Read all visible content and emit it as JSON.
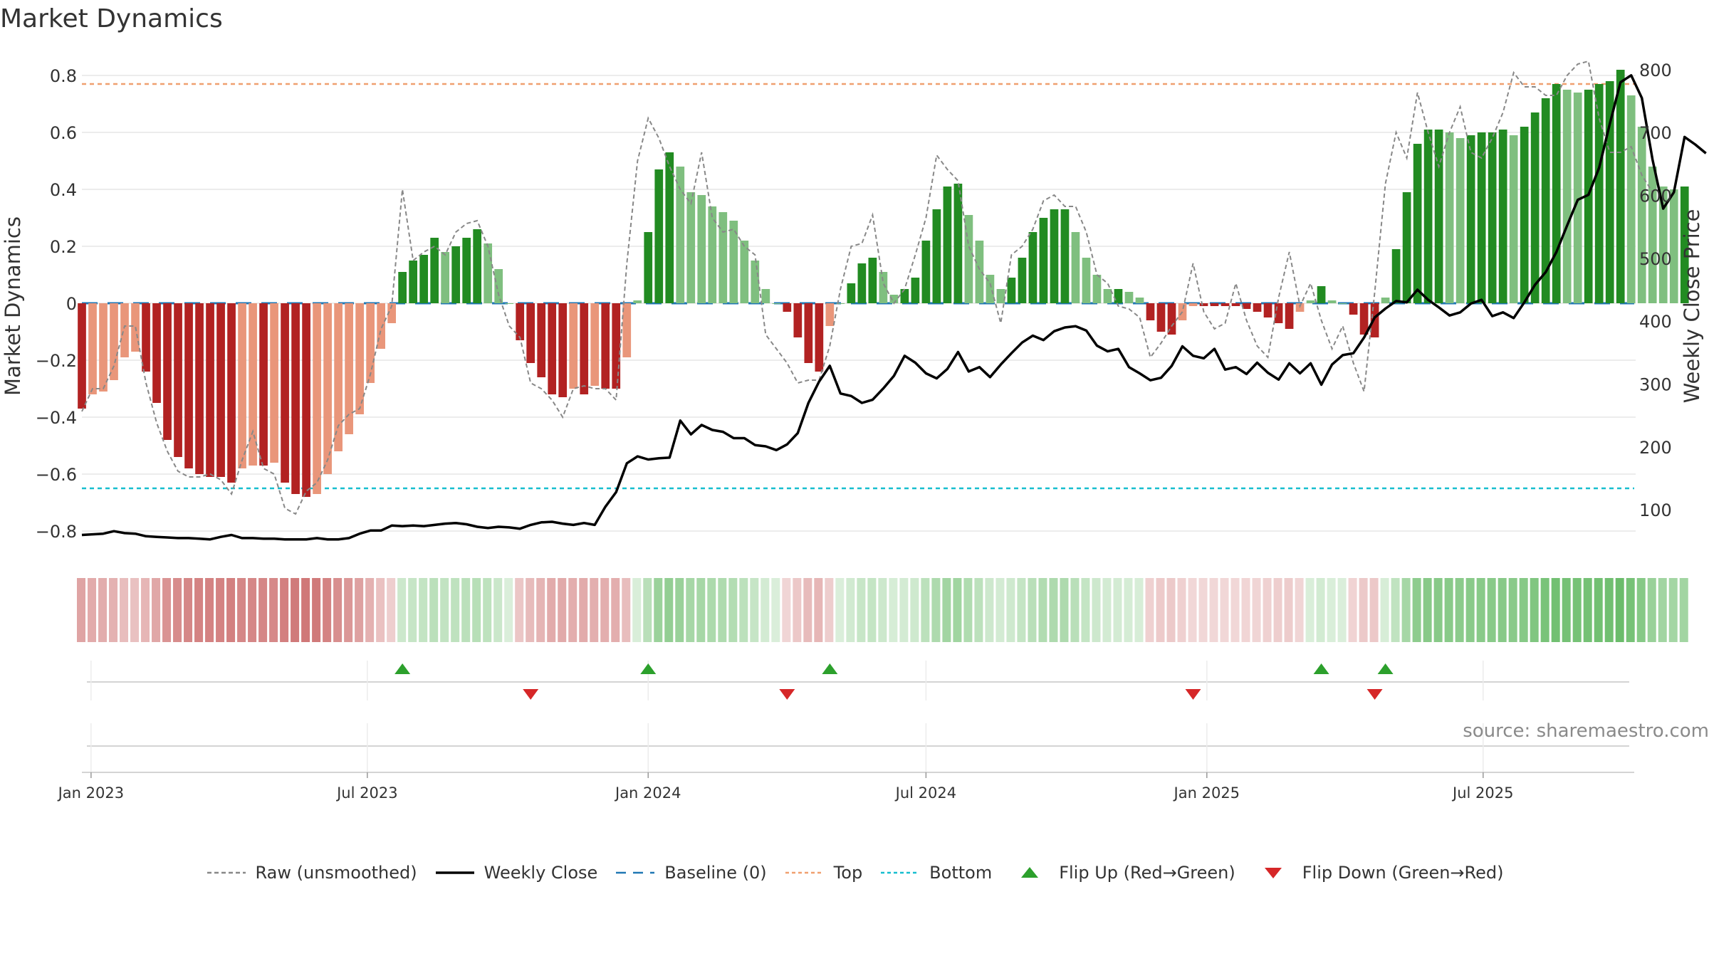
{
  "title": "Market Dynamics",
  "source": "source: sharemaestro.com",
  "legend": [
    {
      "key": "raw",
      "label": "Raw (unsmoothed)",
      "icon": "dashed-grey-line",
      "color": "#888888"
    },
    {
      "key": "close",
      "label": "Weekly Close",
      "icon": "solid-black-line",
      "color": "#000000"
    },
    {
      "key": "baseline",
      "label": "Baseline (0)",
      "icon": "dashed-blue-line",
      "color": "#1f77b4"
    },
    {
      "key": "top",
      "label": "Top",
      "icon": "dotted-orange-line",
      "color": "#f0a070"
    },
    {
      "key": "bottom",
      "label": "Bottom",
      "icon": "dotted-cyan-line",
      "color": "#17becf"
    },
    {
      "key": "flipup",
      "label": "Flip Up (Red→Green)",
      "icon": "triangle-up-icon",
      "color": "#2ca02c"
    },
    {
      "key": "flipdown",
      "label": "Flip Down (Green→Red)",
      "icon": "triangle-down-icon",
      "color": "#d62728"
    }
  ],
  "colors": {
    "red_dark": "#b22222",
    "red_light": "#e9967a",
    "green_dark": "#228b22",
    "green_light": "#7fbf7f",
    "top_line": "#f0a070",
    "bottom_line": "#17becf",
    "baseline": "#1f77b4",
    "raw": "#888888",
    "close": "#000000"
  },
  "chart_data": {
    "type": "bar",
    "title": "Market Dynamics",
    "ylabel": "Market Dynamics",
    "y2label": "Weekly Close Price",
    "ylim": [
      -0.88,
      0.86
    ],
    "y2lim": [
      30,
      818
    ],
    "yticks": [
      -0.8,
      -0.6,
      -0.4,
      -0.2,
      0,
      0.2,
      0.4,
      0.6,
      0.8
    ],
    "yticklabels": [
      "−0.8",
      "−0.6",
      "−0.4",
      "−0.2",
      "0",
      "0.2",
      "0.4",
      "0.6",
      "0.8"
    ],
    "y2ticks": [
      100,
      200,
      300,
      400,
      500,
      600,
      700,
      800
    ],
    "xstart": "2022-12-26",
    "xend": "2025-10-08",
    "xticks": [
      "2023-01-01",
      "2023-07-01",
      "2024-01-01",
      "2024-07-01",
      "2025-01-01",
      "2025-07-01"
    ],
    "xticklabels": [
      "Jan 2023",
      "Jul 2023",
      "Jan 2024",
      "Jul 2024",
      "Jan 2025",
      "Jul 2025"
    ],
    "grid": true,
    "top_threshold": 0.77,
    "bottom_threshold": -0.65,
    "baseline": 0,
    "first_week": "2022-12-26",
    "week_days": 7,
    "dynamics": [
      -0.37,
      -0.32,
      -0.31,
      -0.27,
      -0.19,
      -0.17,
      -0.24,
      -0.35,
      -0.48,
      -0.54,
      -0.58,
      -0.6,
      -0.61,
      -0.61,
      -0.63,
      -0.58,
      -0.57,
      -0.57,
      -0.56,
      -0.63,
      -0.67,
      -0.68,
      -0.67,
      -0.6,
      -0.52,
      -0.46,
      -0.39,
      -0.28,
      -0.16,
      -0.07,
      0.11,
      0.15,
      0.17,
      0.23,
      0.18,
      0.2,
      0.23,
      0.26,
      0.21,
      0.12,
      0.0,
      -0.13,
      -0.21,
      -0.26,
      -0.32,
      -0.33,
      -0.3,
      -0.32,
      -0.29,
      -0.3,
      -0.3,
      -0.19,
      0.01,
      0.25,
      0.47,
      0.53,
      0.48,
      0.39,
      0.38,
      0.34,
      0.32,
      0.29,
      0.22,
      0.15,
      0.05,
      0.0,
      -0.03,
      -0.12,
      -0.21,
      -0.24,
      -0.08,
      0.0,
      0.07,
      0.14,
      0.16,
      0.11,
      0.03,
      0.05,
      0.09,
      0.22,
      0.33,
      0.41,
      0.42,
      0.31,
      0.22,
      0.1,
      0.05,
      0.09,
      0.16,
      0.25,
      0.3,
      0.33,
      0.33,
      0.25,
      0.16,
      0.1,
      0.05,
      0.05,
      0.04,
      0.02,
      -0.06,
      -0.1,
      -0.11,
      -0.06,
      -0.01,
      -0.01,
      -0.01,
      -0.01,
      -0.01,
      -0.02,
      -0.03,
      -0.05,
      -0.07,
      -0.09,
      -0.03,
      0.01,
      0.06,
      0.01,
      0.0,
      -0.04,
      -0.11,
      -0.12,
      0.02,
      0.19,
      0.39,
      0.56,
      0.61,
      0.61,
      0.6,
      0.58,
      0.59,
      0.6,
      0.6,
      0.61,
      0.59,
      0.62,
      0.67,
      0.72,
      0.77,
      0.75,
      0.74,
      0.75,
      0.77,
      0.78,
      0.82,
      0.73,
      0.62,
      0.48,
      0.41,
      0.4,
      0.41
    ],
    "raw": [
      -0.38,
      -0.3,
      -0.3,
      -0.22,
      -0.08,
      -0.08,
      -0.28,
      -0.42,
      -0.52,
      -0.59,
      -0.61,
      -0.61,
      -0.6,
      -0.62,
      -0.67,
      -0.55,
      -0.45,
      -0.58,
      -0.6,
      -0.72,
      -0.74,
      -0.66,
      -0.63,
      -0.55,
      -0.43,
      -0.39,
      -0.37,
      -0.25,
      -0.09,
      -0.01,
      0.4,
      0.15,
      0.18,
      0.2,
      0.17,
      0.25,
      0.28,
      0.29,
      0.2,
      0.03,
      -0.08,
      -0.12,
      -0.28,
      -0.3,
      -0.34,
      -0.4,
      -0.3,
      -0.29,
      -0.3,
      -0.3,
      -0.34,
      0.14,
      0.5,
      0.65,
      0.58,
      0.48,
      0.4,
      0.35,
      0.53,
      0.3,
      0.25,
      0.26,
      0.2,
      0.17,
      -0.11,
      -0.16,
      -0.21,
      -0.28,
      -0.27,
      -0.27,
      -0.15,
      0.05,
      0.2,
      0.21,
      0.31,
      0.07,
      0.0,
      0.05,
      0.17,
      0.3,
      0.52,
      0.47,
      0.43,
      0.2,
      0.12,
      0.07,
      -0.07,
      0.17,
      0.2,
      0.26,
      0.36,
      0.38,
      0.34,
      0.34,
      0.25,
      0.1,
      0.07,
      -0.01,
      -0.02,
      -0.05,
      -0.19,
      -0.14,
      -0.08,
      -0.03,
      0.14,
      -0.03,
      -0.09,
      -0.07,
      0.07,
      -0.06,
      -0.15,
      -0.19,
      0.02,
      0.18,
      -0.01,
      0.07,
      -0.06,
      -0.16,
      -0.08,
      -0.21,
      -0.31,
      0.04,
      0.42,
      0.6,
      0.51,
      0.74,
      0.6,
      0.48,
      0.6,
      0.69,
      0.53,
      0.51,
      0.58,
      0.67,
      0.81,
      0.76,
      0.76,
      0.73,
      0.73,
      0.8,
      0.84,
      0.85,
      0.65,
      0.53,
      0.53,
      0.55,
      0.45,
      0.39
    ],
    "close": [
      60,
      61,
      62,
      66,
      63,
      62,
      58,
      57,
      56,
      55,
      55,
      54,
      53,
      57,
      60,
      55,
      55,
      54,
      54,
      53,
      53,
      53,
      55,
      53,
      53,
      55,
      62,
      67,
      67,
      75,
      74,
      75,
      74,
      76,
      78,
      79,
      77,
      73,
      71,
      73,
      72,
      70,
      76,
      80,
      81,
      78,
      76,
      79,
      76,
      105,
      128,
      174,
      185,
      180,
      182,
      183,
      242,
      220,
      235,
      227,
      224,
      214,
      214,
      203,
      201,
      195,
      204,
      222,
      270,
      304,
      329,
      285,
      281,
      270,
      275,
      293,
      313,
      345,
      334,
      317,
      309,
      324,
      351,
      320,
      327,
      311,
      331,
      349,
      366,
      377,
      370,
      384,
      390,
      392,
      385,
      361,
      352,
      356,
      327,
      317,
      306,
      310,
      329,
      360,
      345,
      341,
      356,
      323,
      327,
      316,
      334,
      318,
      307,
      333,
      317,
      333,
      299,
      331,
      346,
      349,
      374,
      406,
      420,
      432,
      430,
      450,
      434,
      422,
      409,
      414,
      428,
      434,
      408,
      414,
      405,
      430,
      458,
      478,
      510,
      552,
      593,
      601,
      644,
      714,
      780,
      791,
      755,
      657,
      579,
      605,
      693,
      681,
      667
    ]
  },
  "panels": {
    "heat_strip_values": [
      -0.37,
      -0.32,
      -0.31,
      -0.27,
      -0.19,
      -0.17,
      -0.24,
      -0.35,
      -0.48,
      -0.54,
      -0.58,
      -0.6,
      -0.61,
      -0.61,
      -0.63,
      -0.58,
      -0.57,
      -0.57,
      -0.56,
      -0.63,
      -0.67,
      -0.68,
      -0.67,
      -0.6,
      -0.52,
      -0.46,
      -0.39,
      -0.28,
      -0.16,
      -0.07,
      0.11,
      0.15,
      0.17,
      0.23,
      0.18,
      0.2,
      0.23,
      0.26,
      0.21,
      0.12,
      0.0,
      -0.13,
      -0.21,
      -0.26,
      -0.32,
      -0.33,
      -0.3,
      -0.32,
      -0.29,
      -0.3,
      -0.3,
      -0.19,
      0.01,
      0.25,
      0.47,
      0.53,
      0.48,
      0.39,
      0.38,
      0.34,
      0.32,
      0.29,
      0.22,
      0.15,
      0.05,
      0.0,
      -0.03,
      -0.12,
      -0.21,
      -0.24,
      -0.08,
      0.0,
      0.07,
      0.14,
      0.16,
      0.11,
      0.03,
      0.05,
      0.09,
      0.22,
      0.33,
      0.41,
      0.42,
      0.31,
      0.22,
      0.1,
      0.05,
      0.09,
      0.16,
      0.25,
      0.3,
      0.33,
      0.33,
      0.25,
      0.16,
      0.1,
      0.05,
      0.05,
      0.04,
      0.02,
      -0.06,
      -0.1,
      -0.11,
      -0.06,
      -0.01,
      -0.01,
      -0.01,
      -0.01,
      -0.01,
      -0.02,
      -0.03,
      -0.05,
      -0.07,
      -0.09,
      -0.03,
      0.01,
      0.06,
      0.01,
      0.0,
      -0.04,
      -0.11,
      -0.12,
      0.02,
      0.19,
      0.39,
      0.56,
      0.61,
      0.61,
      0.6,
      0.58,
      0.59,
      0.6,
      0.6,
      0.61,
      0.59,
      0.62,
      0.67,
      0.72,
      0.77,
      0.75,
      0.74,
      0.75,
      0.77,
      0.78,
      0.82,
      0.73,
      0.62,
      0.48,
      0.41,
      0.4,
      0.41
    ],
    "flip_up_weeks": [
      30,
      53,
      70,
      116,
      122
    ],
    "flip_down_weeks": [
      42,
      66,
      104,
      121
    ]
  }
}
